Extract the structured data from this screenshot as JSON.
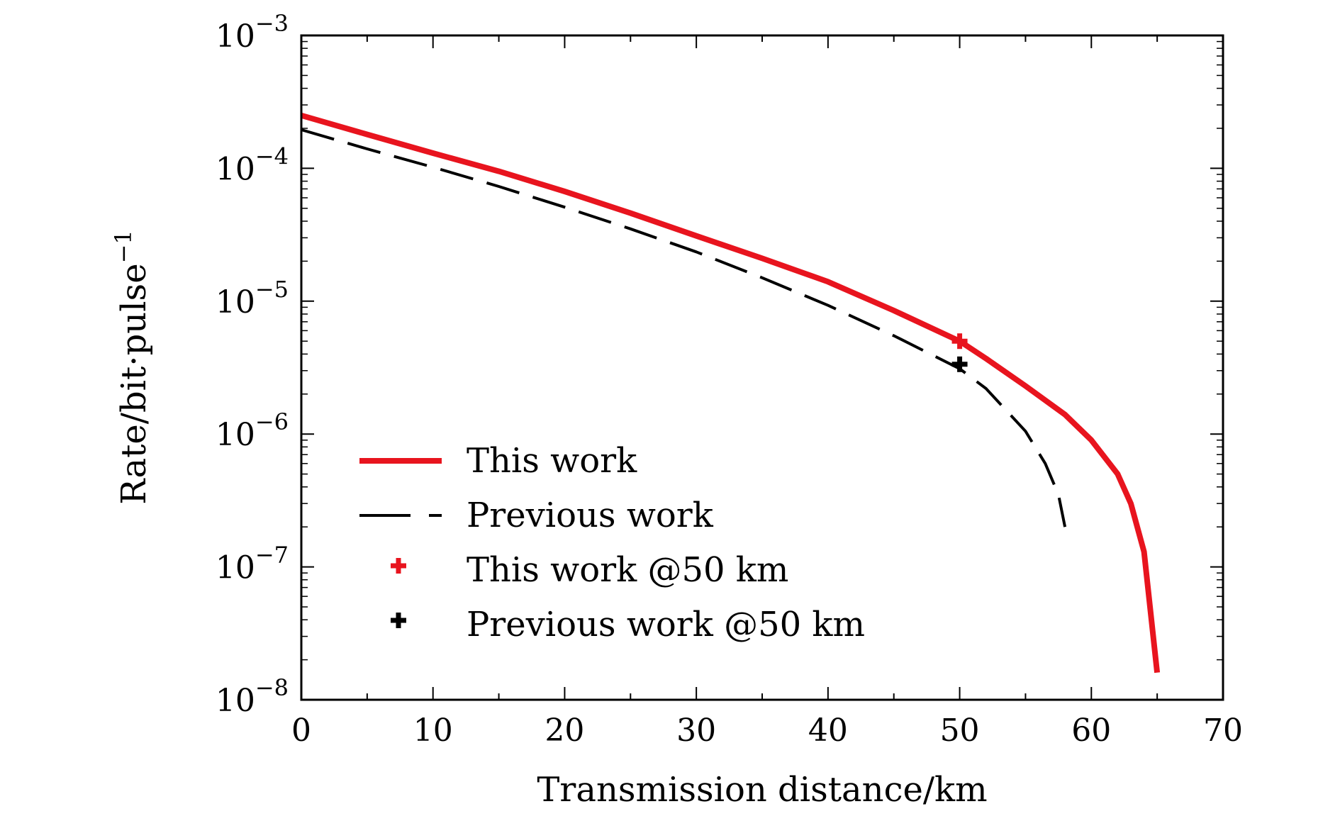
{
  "chart_data": {
    "type": "line",
    "title": "",
    "xlabel": "Transmission distance/km",
    "ylabel": "Rate/bit·pulse",
    "ylabel_superscript": "−1",
    "xlim": [
      0,
      70
    ],
    "ylim": [
      1e-08,
      0.001
    ],
    "yscale": "log",
    "grid": false,
    "legend_position": "bottom-left",
    "x_ticks": [
      {
        "value": 0,
        "label": "0"
      },
      {
        "value": 10,
        "label": "10"
      },
      {
        "value": 20,
        "label": "20"
      },
      {
        "value": 30,
        "label": "30"
      },
      {
        "value": 40,
        "label": "40"
      },
      {
        "value": 50,
        "label": "50"
      },
      {
        "value": 60,
        "label": "60"
      },
      {
        "value": 70,
        "label": "70"
      }
    ],
    "y_ticks": [
      {
        "value": 0.001,
        "base": "10",
        "exp": "−3"
      },
      {
        "value": 0.0001,
        "base": "10",
        "exp": "−4"
      },
      {
        "value": 1e-05,
        "base": "10",
        "exp": "−5"
      },
      {
        "value": 1e-06,
        "base": "10",
        "exp": "−6"
      },
      {
        "value": 1e-07,
        "base": "10",
        "exp": "−7"
      },
      {
        "value": 1e-08,
        "base": "10",
        "exp": "−8"
      }
    ],
    "series": [
      {
        "name": "This work",
        "style": "solid",
        "color": "#e8141e",
        "x": [
          0,
          5,
          10,
          15,
          20,
          25,
          30,
          35,
          40,
          45,
          50,
          52,
          55,
          58,
          60,
          62,
          63,
          64,
          65
        ],
        "y": [
          0.00025,
          0.00018,
          0.00013,
          9.5e-05,
          6.7e-05,
          4.6e-05,
          3.1e-05,
          2.1e-05,
          1.4e-05,
          8.5e-06,
          5e-06,
          3.7e-06,
          2.3e-06,
          1.4e-06,
          9e-07,
          5e-07,
          3e-07,
          1.3e-07,
          1.6e-08
        ]
      },
      {
        "name": "Previous work",
        "style": "dashed",
        "color": "#000000",
        "x": [
          0,
          5,
          10,
          15,
          20,
          25,
          30,
          35,
          40,
          45,
          50,
          52,
          55,
          56.5,
          57.5,
          58
        ],
        "y": [
          0.000195,
          0.00014,
          0.000102,
          7.3e-05,
          5.1e-05,
          3.5e-05,
          2.35e-05,
          1.5e-05,
          9.3e-06,
          5.5e-06,
          3.1e-06,
          2.2e-06,
          1.05e-06,
          6e-07,
          3.5e-07,
          2e-07
        ]
      }
    ],
    "points": [
      {
        "name": "This work @50 km",
        "x": 50,
        "y": 5e-06,
        "color": "#e8141e"
      },
      {
        "name": "Previous work @50 km",
        "x": 50,
        "y": 3.35e-06,
        "color": "#000000"
      }
    ],
    "legend": [
      {
        "label": "This work",
        "kind": "solid-line",
        "color": "#e8141e"
      },
      {
        "label": "Previous work",
        "kind": "dashed-line",
        "color": "#000000"
      },
      {
        "label": "This work @50 km",
        "kind": "plus-marker",
        "color": "#e8141e"
      },
      {
        "label": "Previous work @50 km",
        "kind": "plus-marker",
        "color": "#000000"
      }
    ]
  }
}
